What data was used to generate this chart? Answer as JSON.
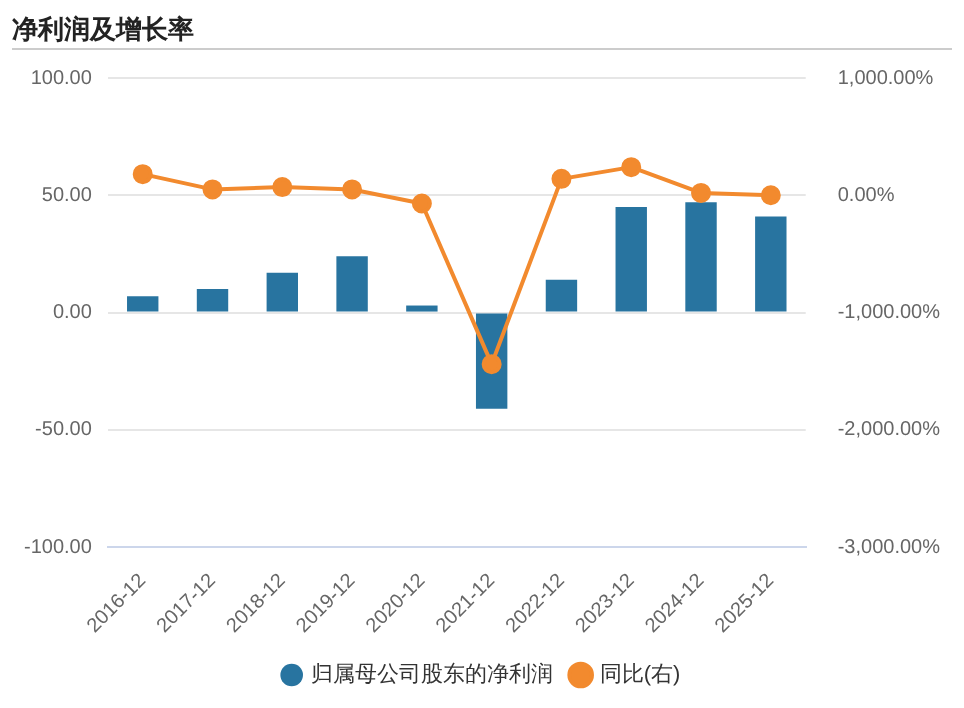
{
  "chart_data": {
    "type": "bar",
    "title": "净利润及增长率",
    "categories": [
      "2016-12",
      "2017-12",
      "2018-12",
      "2019-12",
      "2020-12",
      "2021-12",
      "2022-12",
      "2023-12",
      "2024-12",
      "2025-12"
    ],
    "series": [
      {
        "name": "归属母公司股东的净利润",
        "color": "#2874a0",
        "values": [
          7,
          10,
          17,
          24,
          3,
          -41,
          14,
          45,
          47,
          41
        ]
      },
      {
        "name": "同比(右)",
        "type": "line",
        "axis": "y2",
        "color": "#f28a2e",
        "values": [
          180,
          50,
          70,
          50,
          -70,
          -1440,
          140,
          240,
          20,
          0
        ]
      }
    ],
    "ylim": [
      -100,
      100
    ],
    "yticks": [
      {
        "value": -100,
        "label": "-100.00"
      },
      {
        "value": -50,
        "label": "-50.00"
      },
      {
        "value": 0,
        "label": "0.00"
      },
      {
        "value": 50,
        "label": "50.00"
      },
      {
        "value": 100,
        "label": "100.00"
      }
    ],
    "y2lim": [
      -3000,
      1000
    ],
    "y2ticks": [
      {
        "value": -3000,
        "label": "-3,000.00%"
      },
      {
        "value": -2000,
        "label": "-2,000.00%"
      },
      {
        "value": -1000,
        "label": "-1,000.00%"
      },
      {
        "value": 0,
        "label": "0.00%"
      },
      {
        "value": 1000,
        "label": "1,000.00%"
      }
    ],
    "grid": "y",
    "legend": "bottom",
    "marker": "circle"
  }
}
